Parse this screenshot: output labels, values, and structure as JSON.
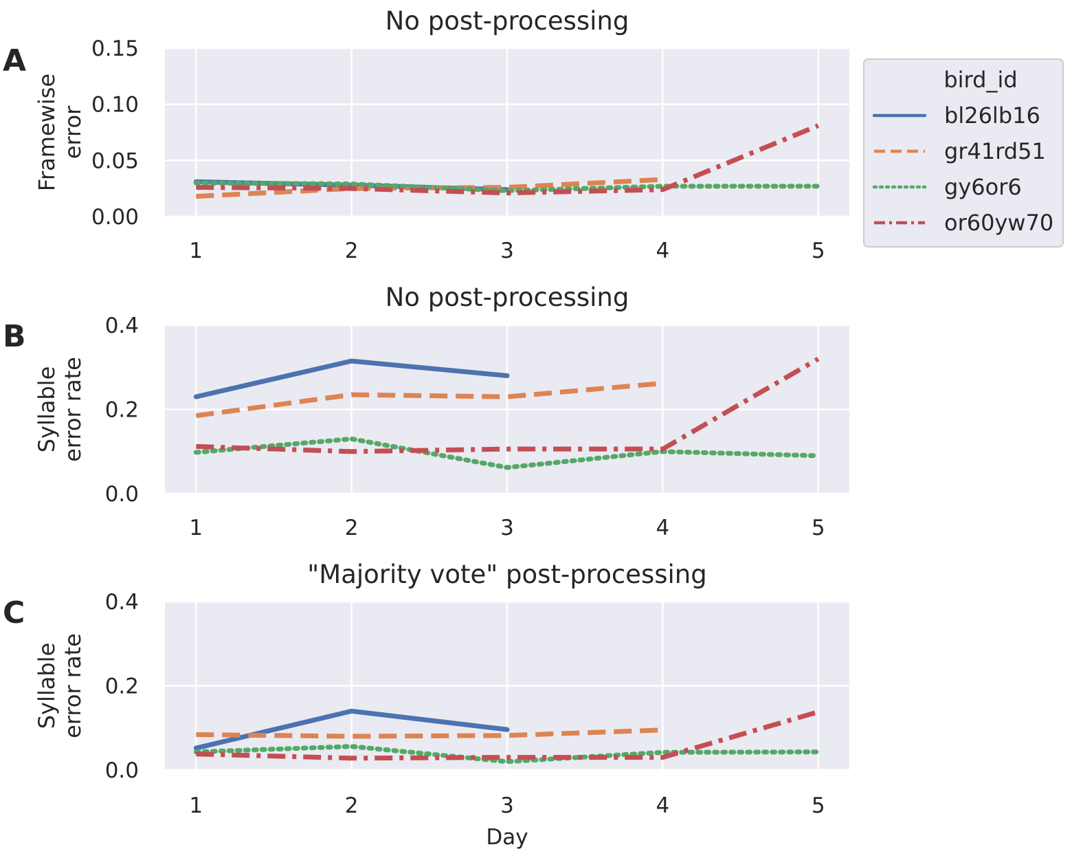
{
  "legend": {
    "title": "bird_id",
    "placement": "upper-right-outside",
    "entries": [
      {
        "name": "bl26lb16",
        "color": "#4c72b0",
        "dash": "solid"
      },
      {
        "name": "gr41rd51",
        "color": "#dd8452",
        "dash": "dashed"
      },
      {
        "name": "gy6or6",
        "color": "#55a868",
        "dash": "dotted"
      },
      {
        "name": "or60yw70",
        "color": "#c44e52",
        "dash": "dashdot"
      }
    ]
  },
  "theme": {
    "plot_bg": "#eaeaf2",
    "grid": "#ffffff"
  },
  "chart_data": [
    {
      "panel_label": "A",
      "type": "line",
      "title": "No post-processing",
      "xlabel": "",
      "ylabel": [
        "Framewise",
        "error"
      ],
      "xlim": [
        0.8,
        5.2
      ],
      "ylim": [
        0,
        0.15
      ],
      "xticks": [
        {
          "v": 1,
          "label": "1"
        },
        {
          "v": 2,
          "label": "2"
        },
        {
          "v": 3,
          "label": "3"
        },
        {
          "v": 4,
          "label": "4"
        },
        {
          "v": 5,
          "label": "5"
        }
      ],
      "yticks": [
        {
          "v": 0,
          "label": "0.00"
        },
        {
          "v": 0.05,
          "label": "0.05"
        },
        {
          "v": 0.1,
          "label": "0.10"
        },
        {
          "v": 0.15,
          "label": "0.15"
        }
      ],
      "grid": true,
      "series": [
        {
          "name": "bl26lb16",
          "x": [
            1,
            2,
            3
          ],
          "y": [
            0.031,
            0.028,
            0.024
          ]
        },
        {
          "name": "gr41rd51",
          "x": [
            1,
            2,
            3,
            4
          ],
          "y": [
            0.018,
            0.025,
            0.026,
            0.033
          ]
        },
        {
          "name": "gy6or6",
          "x": [
            1,
            2,
            3,
            4,
            5
          ],
          "y": [
            0.03,
            0.029,
            0.023,
            0.027,
            0.027
          ]
        },
        {
          "name": "or60yw70",
          "x": [
            1,
            2,
            3,
            4,
            5
          ],
          "y": [
            0.026,
            0.025,
            0.021,
            0.024,
            0.081
          ]
        }
      ]
    },
    {
      "panel_label": "B",
      "type": "line",
      "title": "No post-processing",
      "xlabel": "",
      "ylabel": [
        "Syllable",
        "error rate"
      ],
      "xlim": [
        0.8,
        5.2
      ],
      "ylim": [
        0,
        0.4
      ],
      "xticks": [
        {
          "v": 1,
          "label": "1"
        },
        {
          "v": 2,
          "label": "2"
        },
        {
          "v": 3,
          "label": "3"
        },
        {
          "v": 4,
          "label": "4"
        },
        {
          "v": 5,
          "label": "5"
        }
      ],
      "yticks": [
        {
          "v": 0,
          "label": "0.0"
        },
        {
          "v": 0.2,
          "label": "0.2"
        },
        {
          "v": 0.4,
          "label": "0.4"
        }
      ],
      "grid": true,
      "series": [
        {
          "name": "bl26lb16",
          "x": [
            1,
            2,
            3
          ],
          "y": [
            0.23,
            0.315,
            0.28
          ]
        },
        {
          "name": "gr41rd51",
          "x": [
            1,
            2,
            3,
            4
          ],
          "y": [
            0.185,
            0.235,
            0.23,
            0.262
          ]
        },
        {
          "name": "gy6or6",
          "x": [
            1,
            2,
            3,
            4,
            5
          ],
          "y": [
            0.098,
            0.13,
            0.062,
            0.1,
            0.09
          ]
        },
        {
          "name": "or60yw70",
          "x": [
            1,
            2,
            3,
            4,
            5
          ],
          "y": [
            0.112,
            0.1,
            0.106,
            0.106,
            0.32
          ]
        }
      ]
    },
    {
      "panel_label": "C",
      "type": "line",
      "title": "\"Majority vote\" post-processing",
      "xlabel": "Day",
      "ylabel": [
        "Syllable",
        "error rate"
      ],
      "xlim": [
        0.8,
        5.2
      ],
      "ylim": [
        0,
        0.4
      ],
      "xticks": [
        {
          "v": 1,
          "label": "1"
        },
        {
          "v": 2,
          "label": "2"
        },
        {
          "v": 3,
          "label": "3"
        },
        {
          "v": 4,
          "label": "4"
        },
        {
          "v": 5,
          "label": "5"
        }
      ],
      "yticks": [
        {
          "v": 0,
          "label": "0.0"
        },
        {
          "v": 0.2,
          "label": "0.2"
        },
        {
          "v": 0.4,
          "label": "0.4"
        }
      ],
      "grid": true,
      "series": [
        {
          "name": "bl26lb16",
          "x": [
            1,
            2,
            3
          ],
          "y": [
            0.052,
            0.14,
            0.096
          ]
        },
        {
          "name": "gr41rd51",
          "x": [
            1,
            2,
            3,
            4
          ],
          "y": [
            0.084,
            0.08,
            0.082,
            0.095
          ]
        },
        {
          "name": "gy6or6",
          "x": [
            1,
            2,
            3,
            4,
            5
          ],
          "y": [
            0.043,
            0.056,
            0.02,
            0.042,
            0.043
          ]
        },
        {
          "name": "or60yw70",
          "x": [
            1,
            2,
            3,
            4,
            5
          ],
          "y": [
            0.038,
            0.028,
            0.03,
            0.03,
            0.138
          ]
        }
      ]
    }
  ]
}
